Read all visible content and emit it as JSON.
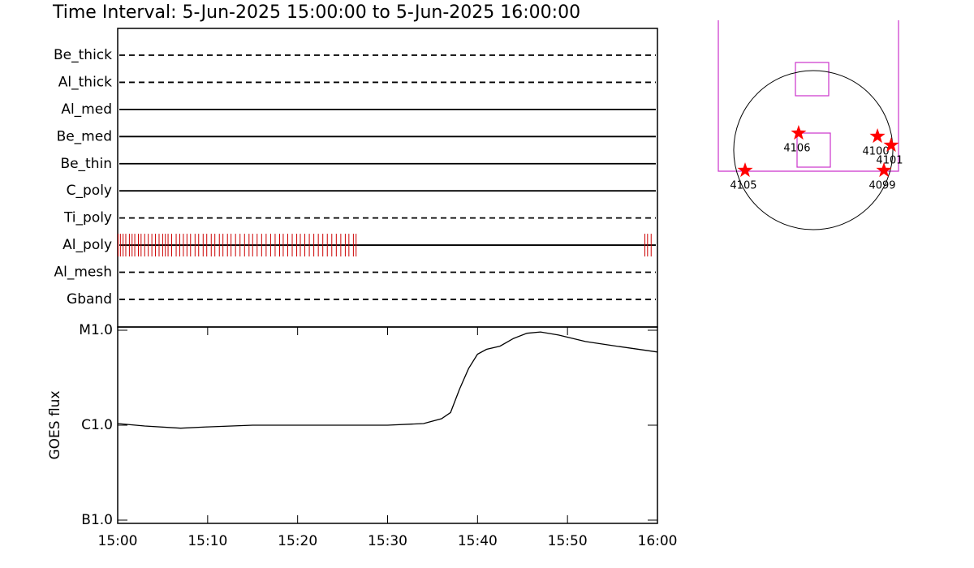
{
  "title": "Time Interval:  5-Jun-2025 15:00:00 to  5-Jun-2025 16:00:00",
  "chart_data": [
    {
      "type": "timeline",
      "xlim": [
        0,
        60
      ],
      "series": [
        {
          "name": "Be_thick",
          "style": "dashed"
        },
        {
          "name": "Al_thick",
          "style": "dashed"
        },
        {
          "name": "Al_med",
          "style": "solid"
        },
        {
          "name": "Be_med",
          "style": "solid"
        },
        {
          "name": "Be_thin",
          "style": "solid"
        },
        {
          "name": "C_poly",
          "style": "solid"
        },
        {
          "name": "Ti_poly",
          "style": "dashed"
        },
        {
          "name": "Al_poly",
          "style": "solid",
          "color": "#cc0000",
          "x": [
            0.05,
            0.3,
            0.6,
            0.9,
            1.3,
            1.6,
            1.9,
            2.3,
            2.6,
            3.0,
            3.4,
            3.8,
            4.2,
            4.6,
            5.0,
            5.3,
            5.6,
            6.0,
            6.5,
            6.9,
            7.3,
            7.7,
            8.1,
            8.6,
            9.0,
            9.5,
            9.9,
            10.4,
            10.8,
            11.3,
            11.7,
            12.2,
            12.6,
            13.1,
            13.6,
            14.1,
            14.6,
            15.0,
            15.5,
            16.0,
            16.5,
            17.0,
            17.5,
            18.0,
            18.4,
            18.9,
            19.4,
            19.9,
            20.3,
            20.8,
            21.3,
            21.8,
            22.3,
            22.8,
            23.3,
            23.8,
            24.3,
            24.8,
            25.3,
            25.7,
            26.2,
            26.5,
            58.6,
            58.9,
            59.3
          ]
        },
        {
          "name": "Al_mesh",
          "style": "dashed"
        },
        {
          "name": "Gband",
          "style": "dashed"
        }
      ]
    },
    {
      "type": "line",
      "y_label": "GOES flux",
      "log_scale": true,
      "color": "#000000",
      "x": [
        0,
        3,
        7,
        10,
        15,
        20,
        25,
        30,
        34,
        36,
        37,
        38,
        39,
        40,
        41,
        42.5,
        44,
        45.5,
        47,
        49,
        52,
        55,
        60
      ],
      "values": [
        1.04e-06,
        9.8e-07,
        9.3e-07,
        9.6e-07,
        1e-06,
        1e-06,
        1e-06,
        1e-06,
        1.04e-06,
        1.17e-06,
        1.36e-06,
        2.4e-06,
        3.95e-06,
        5.6e-06,
        6.3e-06,
        6.8e-06,
        8.2e-06,
        9.3e-06,
        9.6e-06,
        8.9e-06,
        7.6e-06,
        6.9e-06,
        5.9e-06
      ],
      "xlim": [
        0,
        60
      ],
      "xticks": [
        {
          "value": 0,
          "label": "15:00"
        },
        {
          "value": 10,
          "label": "15:10"
        },
        {
          "value": 20,
          "label": "15:20"
        },
        {
          "value": 30,
          "label": "15:30"
        },
        {
          "value": 40,
          "label": "15:40"
        },
        {
          "value": 50,
          "label": "15:50"
        },
        {
          "value": 60,
          "label": "16:00"
        }
      ],
      "ylim": [
        1e-07,
        1e-05
      ],
      "yticks": [
        {
          "value": 1e-07,
          "label": "B1.0"
        },
        {
          "value": 1e-06,
          "label": "C1.0"
        },
        {
          "value": 1e-05,
          "label": "M1.0"
        }
      ]
    },
    {
      "type": "map",
      "xlim": [
        -1200,
        1200
      ],
      "ylim": [
        -1200,
        1200
      ],
      "disk_radius": 945,
      "color": "#ff0000",
      "points": [
        {
          "label": "4106",
          "x": -174,
          "y": 202
        },
        {
          "label": "4100",
          "x": 762,
          "y": 164
        },
        {
          "label": "4101",
          "x": 925,
          "y": 58
        },
        {
          "label": "4105",
          "x": -810,
          "y": -241
        },
        {
          "label": "4099",
          "x": 839,
          "y": -241
        }
      ]
    }
  ]
}
